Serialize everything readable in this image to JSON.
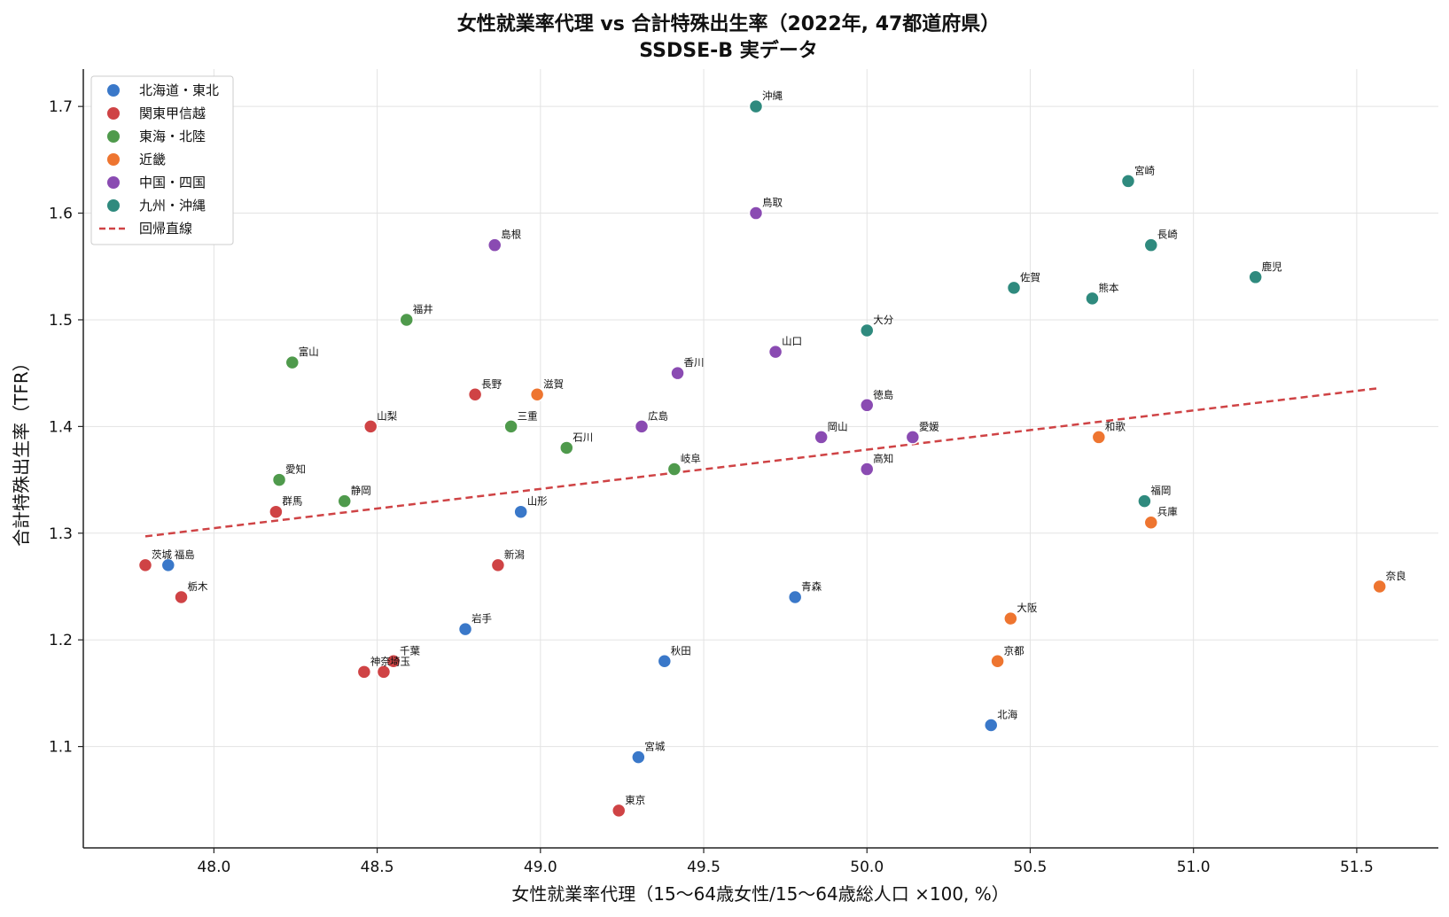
{
  "chart_data": {
    "type": "scatter",
    "title": "女性就業率代理 vs 合計特殊出生率（2022年, 47都道府県）",
    "subtitle": "SSDSE-B 実データ",
    "xlabel": "女性就業率代理（15〜64歳女性/15〜64歳総人口 ×100, %）",
    "ylabel": "合計特殊出生率（TFR）",
    "xlim": [
      47.6,
      51.75
    ],
    "ylim": [
      1.005,
      1.735
    ],
    "x_ticks": [
      "48.0",
      "48.5",
      "49.0",
      "49.5",
      "50.0",
      "50.5",
      "51.0",
      "51.5"
    ],
    "y_ticks": [
      "1.1",
      "1.2",
      "1.3",
      "1.4",
      "1.5",
      "1.6",
      "1.7"
    ],
    "grid": true,
    "legend_position": "top-left",
    "series": [
      {
        "name": "北海道・東北",
        "color": "#3a78c9",
        "points": [
          {
            "label": "北海",
            "x": 50.38,
            "y": 1.12
          },
          {
            "label": "青森",
            "x": 49.78,
            "y": 1.24
          },
          {
            "label": "岩手",
            "x": 48.77,
            "y": 1.21
          },
          {
            "label": "宮城",
            "x": 49.3,
            "y": 1.09
          },
          {
            "label": "秋田",
            "x": 49.38,
            "y": 1.18
          },
          {
            "label": "山形",
            "x": 48.94,
            "y": 1.32
          },
          {
            "label": "福島",
            "x": 47.86,
            "y": 1.27
          }
        ]
      },
      {
        "name": "関東甲信越",
        "color": "#cf4345",
        "points": [
          {
            "label": "茨城",
            "x": 47.79,
            "y": 1.27
          },
          {
            "label": "栃木",
            "x": 47.9,
            "y": 1.24
          },
          {
            "label": "群馬",
            "x": 48.19,
            "y": 1.32
          },
          {
            "label": "埼玉",
            "x": 48.52,
            "y": 1.17
          },
          {
            "label": "千葉",
            "x": 48.55,
            "y": 1.18
          },
          {
            "label": "東京",
            "x": 49.24,
            "y": 1.04
          },
          {
            "label": "神奈",
            "x": 48.46,
            "y": 1.17
          },
          {
            "label": "新潟",
            "x": 48.87,
            "y": 1.27
          },
          {
            "label": "山梨",
            "x": 48.48,
            "y": 1.4
          },
          {
            "label": "長野",
            "x": 48.8,
            "y": 1.43
          }
        ]
      },
      {
        "name": "東海・北陸",
        "color": "#4f9a4c",
        "points": [
          {
            "label": "富山",
            "x": 48.24,
            "y": 1.46
          },
          {
            "label": "石川",
            "x": 49.08,
            "y": 1.38
          },
          {
            "label": "福井",
            "x": 48.59,
            "y": 1.5
          },
          {
            "label": "岐阜",
            "x": 49.41,
            "y": 1.36
          },
          {
            "label": "静岡",
            "x": 48.4,
            "y": 1.33
          },
          {
            "label": "愛知",
            "x": 48.2,
            "y": 1.35
          },
          {
            "label": "三重",
            "x": 48.91,
            "y": 1.4
          }
        ]
      },
      {
        "name": "近畿",
        "color": "#ee7530",
        "points": [
          {
            "label": "滋賀",
            "x": 48.99,
            "y": 1.43
          },
          {
            "label": "京都",
            "x": 50.4,
            "y": 1.18
          },
          {
            "label": "大阪",
            "x": 50.44,
            "y": 1.22
          },
          {
            "label": "兵庫",
            "x": 50.87,
            "y": 1.31
          },
          {
            "label": "奈良",
            "x": 51.57,
            "y": 1.25
          },
          {
            "label": "和歌",
            "x": 50.71,
            "y": 1.39
          }
        ]
      },
      {
        "name": "中国・四国",
        "color": "#8a4bb2",
        "points": [
          {
            "label": "鳥取",
            "x": 49.66,
            "y": 1.6
          },
          {
            "label": "島根",
            "x": 48.86,
            "y": 1.57
          },
          {
            "label": "岡山",
            "x": 49.86,
            "y": 1.39
          },
          {
            "label": "広島",
            "x": 49.31,
            "y": 1.4
          },
          {
            "label": "山口",
            "x": 49.72,
            "y": 1.47
          },
          {
            "label": "徳島",
            "x": 50.0,
            "y": 1.42
          },
          {
            "label": "香川",
            "x": 49.42,
            "y": 1.45
          },
          {
            "label": "愛媛",
            "x": 50.14,
            "y": 1.39
          },
          {
            "label": "高知",
            "x": 50.0,
            "y": 1.36
          }
        ]
      },
      {
        "name": "九州・沖縄",
        "color": "#2f8a7e",
        "points": [
          {
            "label": "福岡",
            "x": 50.85,
            "y": 1.33
          },
          {
            "label": "佐賀",
            "x": 50.45,
            "y": 1.53
          },
          {
            "label": "長崎",
            "x": 50.87,
            "y": 1.57
          },
          {
            "label": "熊本",
            "x": 50.69,
            "y": 1.52
          },
          {
            "label": "大分",
            "x": 50.0,
            "y": 1.49
          },
          {
            "label": "宮崎",
            "x": 50.8,
            "y": 1.63
          },
          {
            "label": "鹿児",
            "x": 51.19,
            "y": 1.54
          },
          {
            "label": "沖縄",
            "x": 49.66,
            "y": 1.7
          }
        ]
      }
    ],
    "regression": {
      "name": "回帰直線",
      "color": "#cf4345",
      "x": [
        47.79,
        51.57
      ],
      "y": [
        1.297,
        1.436
      ]
    }
  }
}
